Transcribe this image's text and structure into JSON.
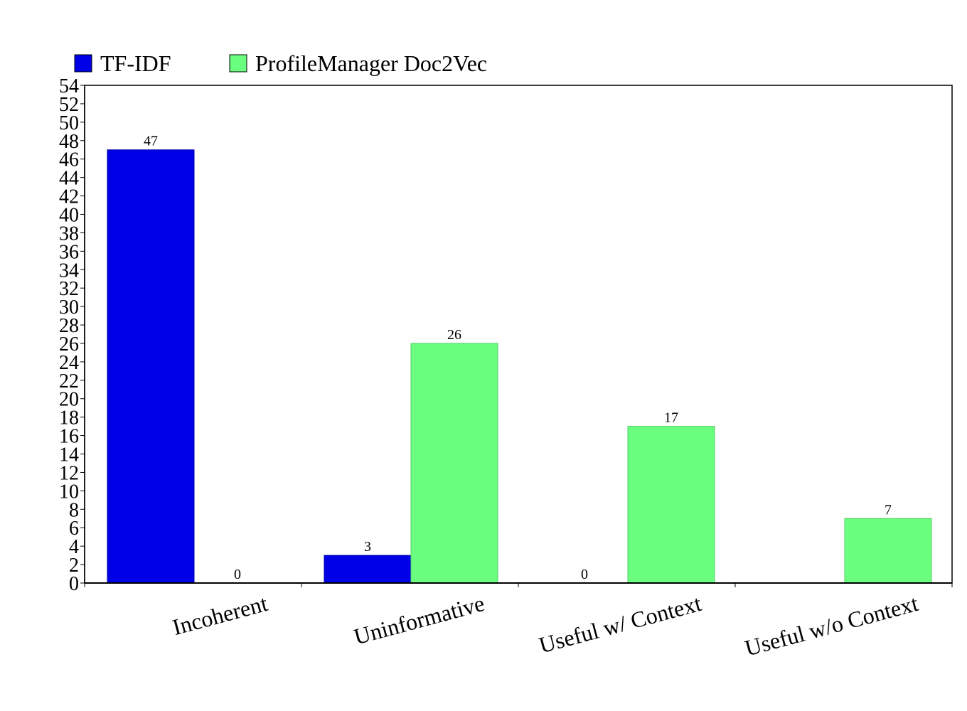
{
  "colors": {
    "tfidf": "#0000e6",
    "doc2vec": "#6aff7f",
    "axis": "#000000",
    "frame": "#000000"
  },
  "chart_data": {
    "type": "bar",
    "categories": [
      "Incoherent",
      "Uninformative",
      "Useful w/ Context",
      "Useful w/o Context"
    ],
    "series": [
      {
        "name": "TF-IDF",
        "values": [
          47,
          3,
          0,
          0
        ],
        "labels": [
          "47",
          "3",
          "0",
          null
        ]
      },
      {
        "name": "ProfileManager Doc2Vec",
        "values": [
          0,
          26,
          17,
          7
        ],
        "labels": [
          "0",
          "26",
          "17",
          "7"
        ]
      }
    ],
    "ylim": [
      0,
      54
    ],
    "ytick_step": 2,
    "grid": false,
    "legend_position": "top-left",
    "x_tick_label_rotation": "tilted"
  }
}
